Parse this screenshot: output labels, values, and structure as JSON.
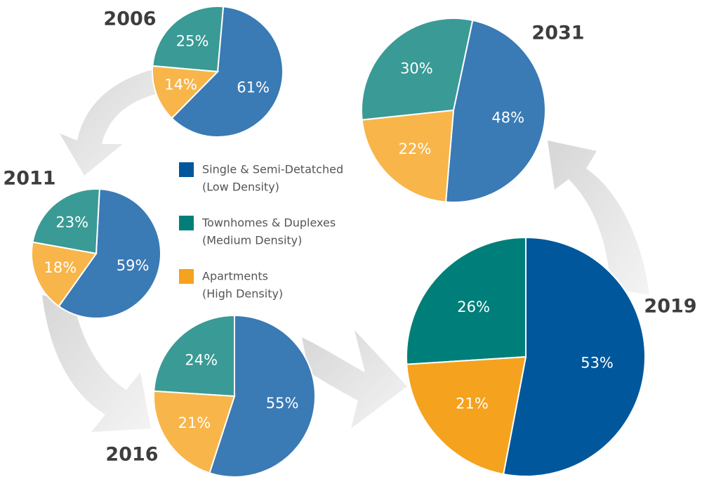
{
  "legend": {
    "items": [
      {
        "label": "Single & Semi-Detatched",
        "sublabel": "(Low Density)",
        "color": "#00579b"
      },
      {
        "label": "Townhomes & Duplexes",
        "sublabel": "(Medium Density)",
        "color": "#007f7a"
      },
      {
        "label": "Apartments",
        "sublabel": "(High Density)",
        "color": "#f5a21e"
      }
    ]
  },
  "chart_data": [
    {
      "type": "pie",
      "title": "2006",
      "values": [
        61,
        25,
        14
      ],
      "value_labels": [
        "61%",
        "25%",
        "14%"
      ],
      "colors": [
        "#3a7ab5",
        "#3a9a95",
        "#f8b54a"
      ]
    },
    {
      "type": "pie",
      "title": "2011",
      "values": [
        59,
        23,
        18
      ],
      "value_labels": [
        "59%",
        "23%",
        "18%"
      ],
      "colors": [
        "#3a7ab5",
        "#3a9a95",
        "#f8b54a"
      ]
    },
    {
      "type": "pie",
      "title": "2016",
      "values": [
        55,
        24,
        21
      ],
      "value_labels": [
        "55%",
        "24%",
        "21%"
      ],
      "colors": [
        "#3a7ab5",
        "#3a9a95",
        "#f8b54a"
      ]
    },
    {
      "type": "pie",
      "title": "2031",
      "values": [
        48,
        30,
        22
      ],
      "value_labels": [
        "48%",
        "30%",
        "22%"
      ],
      "colors": [
        "#3a7ab5",
        "#3a9a95",
        "#f8b54a"
      ]
    },
    {
      "type": "pie",
      "title": "2019",
      "values": [
        53,
        26,
        21
      ],
      "value_labels": [
        "53%",
        "26%",
        "21%"
      ],
      "colors": [
        "#00579b",
        "#007f7a",
        "#f5a21e"
      ]
    }
  ]
}
